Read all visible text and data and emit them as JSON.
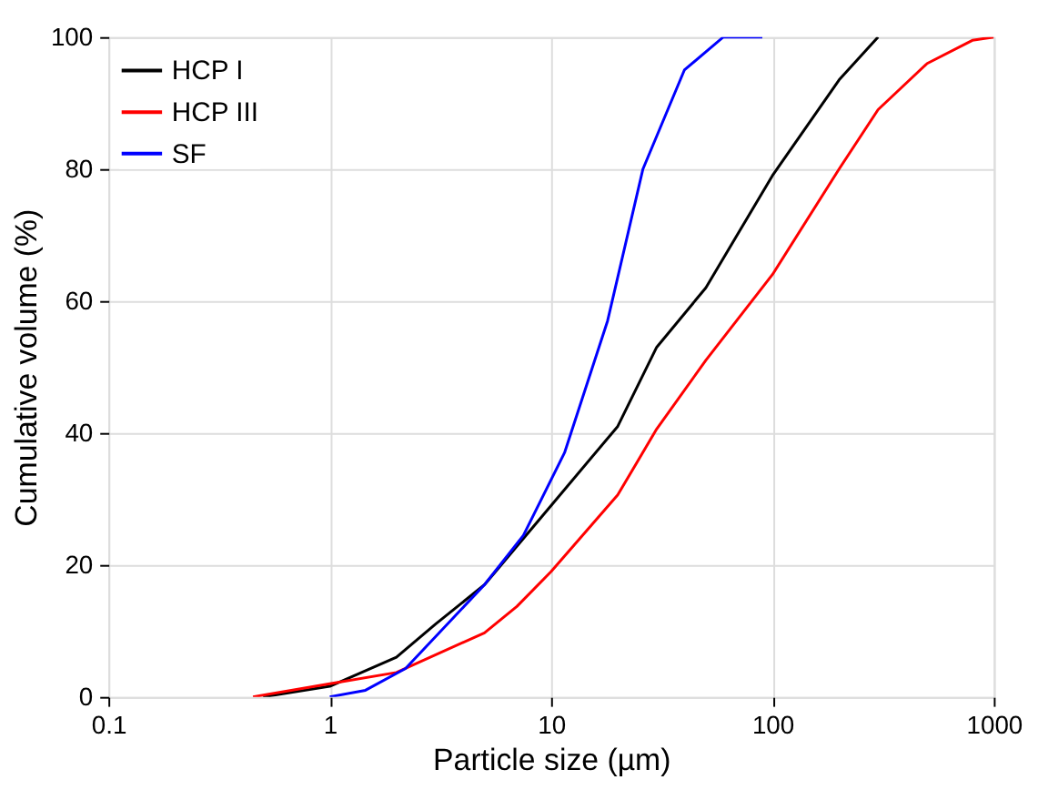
{
  "chart_data": {
    "type": "line",
    "xlabel": "Particle size (µm)",
    "ylabel": "Cumulative volume (%)",
    "log": "x",
    "xlim": [
      0.1,
      1000
    ],
    "xticks": [
      0.1,
      1,
      10,
      100,
      1000
    ],
    "ylim": [
      0,
      100
    ],
    "yticks": [
      0,
      20,
      40,
      60,
      80,
      100
    ],
    "grid": true,
    "legend": "top left",
    "line_style": "solid",
    "marker": "none",
    "series": [
      {
        "name": "HCP I",
        "color": "#000000",
        "x": [
          0.5,
          1,
          2,
          3,
          5,
          10,
          20,
          30,
          50,
          100,
          200,
          300
        ],
        "values": [
          0,
          1.6,
          6,
          11,
          17,
          29,
          41,
          53,
          62,
          79,
          93.5,
          100
        ]
      },
      {
        "name": "HCP III",
        "color": "#ff0000",
        "x": [
          0.45,
          1,
          2,
          5,
          7,
          10,
          20,
          30,
          50,
          100,
          200,
          300,
          500,
          800,
          1000
        ],
        "values": [
          0,
          2,
          3.7,
          9.7,
          13.7,
          19,
          30.6,
          40.6,
          51,
          64,
          80,
          89,
          96,
          99.5,
          100
        ]
      },
      {
        "name": "SF",
        "color": "#0000ff",
        "x": [
          1,
          1.45,
          2.2,
          5,
          7.5,
          11.5,
          18,
          26,
          40,
          60,
          90
        ],
        "values": [
          0,
          1,
          4.3,
          17,
          24.5,
          37,
          57,
          80,
          95,
          100,
          100
        ]
      }
    ]
  }
}
